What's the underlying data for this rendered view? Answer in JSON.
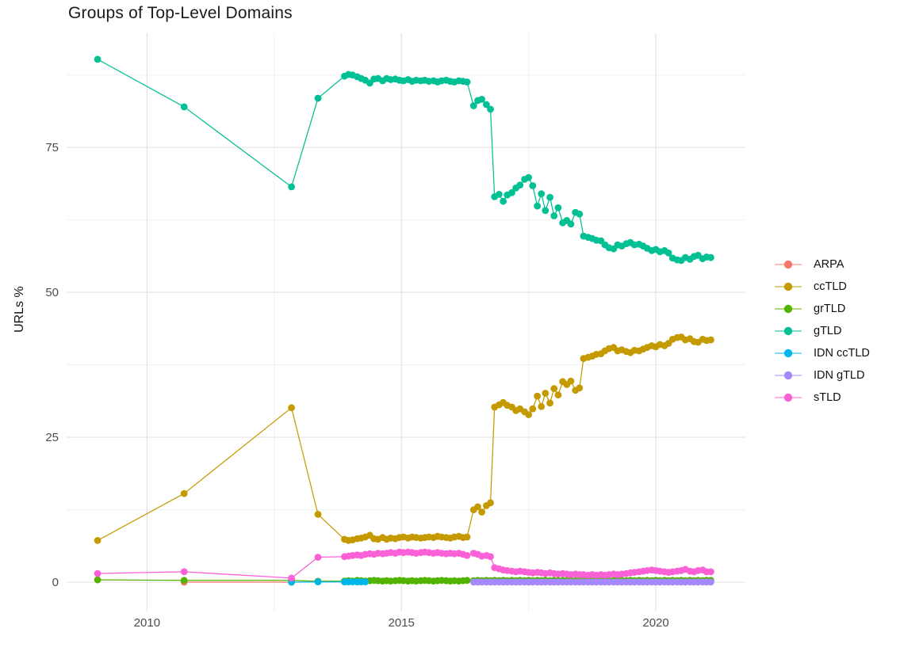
{
  "title": "Groups of Top-Level Domains",
  "chart_data": {
    "type": "line",
    "title": "Groups of Top-Level Domains",
    "xlabel": "",
    "ylabel": "URLs %",
    "xlim": [
      2008.42,
      2021.76
    ],
    "ylim": [
      -5.05,
      94.7
    ],
    "x_ticks": [
      2010,
      2015,
      2020
    ],
    "x_tick_labels": [
      "2010",
      "2015",
      "2020"
    ],
    "y_ticks": [
      0,
      25,
      50,
      75
    ],
    "y_tick_labels": [
      "0",
      "25",
      "50",
      "75"
    ],
    "x_minor": [
      2012.5,
      2017.5
    ],
    "y_minor": [
      12.5,
      37.5,
      62.5,
      87.5
    ],
    "grid": true,
    "legend_position": "right",
    "x": [
      2009.03,
      2010.73,
      2012.84,
      2013.36,
      2013.88,
      2013.96,
      2014.04,
      2014.13,
      2014.21,
      2014.29,
      2014.38,
      2014.46,
      2014.54,
      2014.63,
      2014.71,
      2014.79,
      2014.88,
      2014.96,
      2015.04,
      2015.13,
      2015.21,
      2015.29,
      2015.38,
      2015.46,
      2015.54,
      2015.63,
      2015.71,
      2015.79,
      2015.88,
      2015.96,
      2016.04,
      2016.13,
      2016.21,
      2016.29,
      2016.42,
      2016.5,
      2016.58,
      2016.67,
      2016.75,
      2016.83,
      2016.92,
      2017,
      2017.08,
      2017.17,
      2017.25,
      2017.33,
      2017.42,
      2017.5,
      2017.58,
      2017.67,
      2017.75,
      2017.83,
      2017.92,
      2018,
      2018.08,
      2018.17,
      2018.25,
      2018.33,
      2018.42,
      2018.5,
      2018.58,
      2018.67,
      2018.75,
      2018.83,
      2018.92,
      2019,
      2019.08,
      2019.17,
      2019.25,
      2019.33,
      2019.42,
      2019.5,
      2019.58,
      2019.67,
      2019.75,
      2019.83,
      2019.92,
      2020,
      2020.08,
      2020.17,
      2020.25,
      2020.33,
      2020.42,
      2020.5,
      2020.58,
      2020.67,
      2020.75,
      2020.83,
      2020.92,
      2021,
      2021.08
    ],
    "series": [
      {
        "name": "ARPA",
        "color": "#F8766D",
        "points": [
          [
            2010.73,
            0
          ],
          [
            2012.84,
            0
          ]
        ]
      },
      {
        "name": "ccTLD",
        "color": "#C49A00",
        "y": [
          7.2,
          15.3,
          30.1,
          11.7,
          7.4,
          7.2,
          7.3,
          7.5,
          7.6,
          7.8,
          8.1,
          7.5,
          7.4,
          7.7,
          7.4,
          7.6,
          7.5,
          7.7,
          7.8,
          7.6,
          7.8,
          7.7,
          7.6,
          7.7,
          7.8,
          7.7,
          7.9,
          7.8,
          7.7,
          7.6,
          7.8,
          7.9,
          7.7,
          7.8,
          12.5,
          13,
          12.1,
          13.2,
          13.7,
          30.2,
          30.6,
          31,
          30.5,
          30.2,
          29.6,
          29.9,
          29.4,
          28.9,
          29.9,
          32.1,
          30.3,
          32.6,
          30.9,
          33.4,
          32.3,
          34.6,
          34.1,
          34.7,
          33.1,
          33.5,
          38.6,
          38.8,
          39,
          39.3,
          39.4,
          39.9,
          40.3,
          40.5,
          39.9,
          40.1,
          39.8,
          39.6,
          40,
          39.9,
          40.2,
          40.5,
          40.8,
          40.6,
          41,
          40.8,
          41.2,
          41.9,
          42.2,
          42.3,
          41.8,
          42,
          41.5,
          41.4,
          41.9,
          41.7,
          41.8
        ]
      },
      {
        "name": "grTLD",
        "color": "#53B400",
        "y": [
          0.4,
          0.3,
          0.3,
          0.15,
          0.2,
          0.25,
          0.2,
          0.3,
          0.25,
          0.2,
          0.25,
          0.3,
          0.25,
          0.2,
          0.25,
          0.2,
          0.25,
          0.3,
          0.25,
          0.2,
          0.25,
          0.2,
          0.25,
          0.3,
          0.25,
          0.2,
          0.25,
          0.3,
          0.25,
          0.2,
          0.25,
          0.2,
          0.25,
          0.3,
          0.25,
          0.3,
          0.25,
          0.3,
          0.25,
          0.3,
          0.25,
          0.3,
          0.25,
          0.3,
          0.25,
          0.3,
          0.25,
          0.3,
          0.25,
          0.3,
          0.25,
          0.3,
          0.25,
          0.3,
          0.25,
          0.3,
          0.25,
          0.3,
          0.25,
          0.3,
          0.25,
          0.3,
          0.25,
          0.3,
          0.25,
          0.3,
          0.25,
          0.3,
          0.25,
          0.3,
          0.25,
          0.3,
          0.25,
          0.3,
          0.25,
          0.3,
          0.25,
          0.3,
          0.25,
          0.3,
          0.25,
          0.3,
          0.25,
          0.3,
          0.25,
          0.3,
          0.25,
          0.3,
          0.25,
          0.3,
          0.3
        ]
      },
      {
        "name": "gTLD",
        "color": "#00C094",
        "y": [
          90.2,
          82,
          68.2,
          83.5,
          87.3,
          87.6,
          87.5,
          87.2,
          86.9,
          86.6,
          86.1,
          86.8,
          86.9,
          86.5,
          86.9,
          86.7,
          86.8,
          86.6,
          86.5,
          86.7,
          86.4,
          86.6,
          86.5,
          86.6,
          86.4,
          86.5,
          86.3,
          86.5,
          86.6,
          86.4,
          86.3,
          86.5,
          86.4,
          86.3,
          82.2,
          83.1,
          83.3,
          82.4,
          81.6,
          66.5,
          66.9,
          65.7,
          66.8,
          67.2,
          68,
          68.5,
          69.5,
          69.8,
          68.4,
          64.9,
          67,
          64.1,
          66.4,
          63.2,
          64.6,
          62,
          62.4,
          61.8,
          63.8,
          63.5,
          59.7,
          59.5,
          59.3,
          59,
          58.9,
          58.2,
          57.7,
          57.5,
          58.2,
          58,
          58.4,
          58.6,
          58.2,
          58.3,
          58,
          57.6,
          57.2,
          57.4,
          57,
          57.2,
          56.8,
          55.9,
          55.6,
          55.5,
          56,
          55.7,
          56.2,
          56.4,
          55.8,
          56.1,
          56
        ]
      },
      {
        "name": "IDN ccTLD",
        "color": "#00B6EB",
        "points": [
          [
            2012.84,
            0
          ],
          [
            2013.36,
            0.05
          ],
          [
            2013.88,
            0.05
          ],
          [
            2013.96,
            0.05
          ],
          [
            2014.04,
            0.05
          ],
          [
            2014.13,
            0.05
          ],
          [
            2014.21,
            0.05
          ],
          [
            2014.29,
            0.05
          ]
        ]
      },
      {
        "name": "IDN gTLD",
        "color": "#A58AFF",
        "points": [
          [
            2016.42,
            0.02
          ],
          [
            2016.5,
            0.02
          ],
          [
            2016.58,
            0.02
          ],
          [
            2016.67,
            0.02
          ],
          [
            2016.75,
            0.02
          ],
          [
            2016.83,
            0.02
          ],
          [
            2016.92,
            0.02
          ],
          [
            2017,
            0.02
          ],
          [
            2017.08,
            0.02
          ],
          [
            2017.17,
            0.02
          ],
          [
            2017.25,
            0.02
          ],
          [
            2017.33,
            0.02
          ],
          [
            2017.42,
            0.02
          ],
          [
            2017.5,
            0.02
          ],
          [
            2017.58,
            0.02
          ],
          [
            2017.67,
            0.02
          ],
          [
            2017.75,
            0.02
          ],
          [
            2017.83,
            0.02
          ],
          [
            2017.92,
            0.02
          ],
          [
            2018,
            0.02
          ],
          [
            2018.08,
            0.02
          ],
          [
            2018.17,
            0.02
          ],
          [
            2018.25,
            0.02
          ],
          [
            2018.33,
            0.02
          ],
          [
            2018.42,
            0.02
          ],
          [
            2018.5,
            0.02
          ],
          [
            2018.58,
            0.02
          ],
          [
            2018.67,
            0.02
          ],
          [
            2018.75,
            0.02
          ],
          [
            2018.83,
            0.02
          ],
          [
            2018.92,
            0.02
          ],
          [
            2019,
            0.02
          ],
          [
            2019.08,
            0.02
          ],
          [
            2019.17,
            0.02
          ],
          [
            2019.25,
            0.02
          ],
          [
            2019.33,
            0.02
          ],
          [
            2019.42,
            0.02
          ],
          [
            2019.5,
            0.02
          ],
          [
            2019.58,
            0.02
          ],
          [
            2019.67,
            0.02
          ],
          [
            2019.75,
            0.02
          ],
          [
            2019.83,
            0.02
          ],
          [
            2019.92,
            0.02
          ],
          [
            2020,
            0.02
          ],
          [
            2020.08,
            0.02
          ],
          [
            2020.17,
            0.02
          ],
          [
            2020.25,
            0.02
          ],
          [
            2020.33,
            0.02
          ],
          [
            2020.42,
            0.02
          ],
          [
            2020.5,
            0.02
          ],
          [
            2020.58,
            0.02
          ],
          [
            2020.67,
            0.02
          ],
          [
            2020.75,
            0.02
          ],
          [
            2020.83,
            0.02
          ],
          [
            2020.92,
            0.02
          ],
          [
            2021,
            0.02
          ],
          [
            2021.08,
            0.02
          ]
        ]
      },
      {
        "name": "sTLD",
        "color": "#FB61D7",
        "y": [
          1.5,
          1.8,
          0.7,
          4.3,
          4.4,
          4.5,
          4.6,
          4.7,
          4.6,
          4.8,
          4.9,
          4.8,
          5,
          4.9,
          5,
          5.1,
          5,
          5.2,
          5.1,
          5.2,
          5.1,
          5,
          5.1,
          5.2,
          5.1,
          5,
          5.1,
          5,
          4.9,
          5,
          4.9,
          5,
          4.8,
          4.6,
          5,
          4.8,
          4.5,
          4.6,
          4.4,
          2.5,
          2.3,
          2.1,
          2,
          1.9,
          1.8,
          1.9,
          1.8,
          1.7,
          1.6,
          1.7,
          1.6,
          1.5,
          1.6,
          1.5,
          1.4,
          1.5,
          1.4,
          1.3,
          1.4,
          1.3,
          1.3,
          1.2,
          1.3,
          1.2,
          1.3,
          1.2,
          1.3,
          1.4,
          1.3,
          1.4,
          1.5,
          1.6,
          1.7,
          1.8,
          1.9,
          2,
          2.1,
          2,
          1.9,
          1.8,
          1.7,
          1.8,
          1.9,
          2,
          2.2,
          1.9,
          1.8,
          2,
          2.1,
          1.8,
          1.8
        ]
      }
    ]
  },
  "style": {
    "grid_major_color": "#e4e4e4",
    "grid_minor_color": "#f0f0f0",
    "tick_label_color": "#4d4d4d",
    "title_color": "#1a1a1a"
  }
}
